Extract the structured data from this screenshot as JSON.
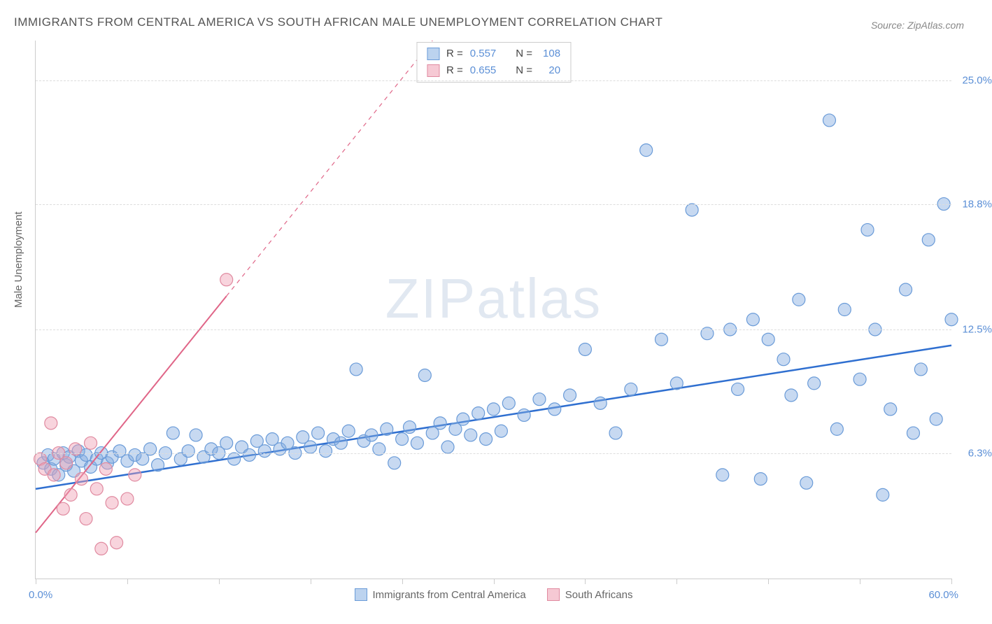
{
  "title": "IMMIGRANTS FROM CENTRAL AMERICA VS SOUTH AFRICAN MALE UNEMPLOYMENT CORRELATION CHART",
  "source": "Source: ZipAtlas.com",
  "ylabel": "Male Unemployment",
  "watermark_a": "ZIP",
  "watermark_b": "atlas",
  "chart": {
    "type": "scatter",
    "xlim": [
      0,
      60
    ],
    "ylim": [
      0,
      27
    ],
    "x_min_label": "0.0%",
    "x_max_label": "60.0%",
    "y_ticks": [
      6.3,
      12.5,
      18.8,
      25.0
    ],
    "y_tick_labels": [
      "6.3%",
      "12.5%",
      "18.8%",
      "25.0%"
    ],
    "x_tick_positions": [
      0,
      6,
      12,
      18,
      24,
      30,
      36,
      42,
      48,
      54,
      60
    ],
    "background_color": "#ffffff",
    "grid_color": "#dddddd",
    "axis_color": "#cccccc",
    "tick_label_color": "#5b8fd6",
    "marker_radius": 9,
    "marker_stroke_width": 1.2,
    "series": [
      {
        "name": "Immigrants from Central America",
        "color_fill": "rgba(130,170,225,0.45)",
        "color_stroke": "#6a9bd8",
        "swatch_fill": "#bcd3ef",
        "swatch_border": "#6a9bd8",
        "r": "0.557",
        "n": "108",
        "trend": {
          "x1": 0,
          "y1": 4.5,
          "x2": 60,
          "y2": 11.7,
          "stroke": "#2f6fd0",
          "width": 2.5,
          "dash": "none"
        },
        "points": [
          [
            0.5,
            5.8
          ],
          [
            0.8,
            6.2
          ],
          [
            1.0,
            5.5
          ],
          [
            1.2,
            6.0
          ],
          [
            1.5,
            5.2
          ],
          [
            1.8,
            6.3
          ],
          [
            2.0,
            5.7
          ],
          [
            2.2,
            6.1
          ],
          [
            2.5,
            5.4
          ],
          [
            2.8,
            6.4
          ],
          [
            3.0,
            5.9
          ],
          [
            3.3,
            6.2
          ],
          [
            3.6,
            5.6
          ],
          [
            4.0,
            6.0
          ],
          [
            4.3,
            6.3
          ],
          [
            4.7,
            5.8
          ],
          [
            5.0,
            6.1
          ],
          [
            5.5,
            6.4
          ],
          [
            6.0,
            5.9
          ],
          [
            6.5,
            6.2
          ],
          [
            7.0,
            6.0
          ],
          [
            7.5,
            6.5
          ],
          [
            8.0,
            5.7
          ],
          [
            8.5,
            6.3
          ],
          [
            9.0,
            7.3
          ],
          [
            9.5,
            6.0
          ],
          [
            10.0,
            6.4
          ],
          [
            10.5,
            7.2
          ],
          [
            11.0,
            6.1
          ],
          [
            11.5,
            6.5
          ],
          [
            12.0,
            6.3
          ],
          [
            12.5,
            6.8
          ],
          [
            13.0,
            6.0
          ],
          [
            13.5,
            6.6
          ],
          [
            14.0,
            6.2
          ],
          [
            14.5,
            6.9
          ],
          [
            15.0,
            6.4
          ],
          [
            15.5,
            7.0
          ],
          [
            16.0,
            6.5
          ],
          [
            16.5,
            6.8
          ],
          [
            17.0,
            6.3
          ],
          [
            17.5,
            7.1
          ],
          [
            18.0,
            6.6
          ],
          [
            18.5,
            7.3
          ],
          [
            19.0,
            6.4
          ],
          [
            19.5,
            7.0
          ],
          [
            20.0,
            6.8
          ],
          [
            20.5,
            7.4
          ],
          [
            21.0,
            10.5
          ],
          [
            21.5,
            6.9
          ],
          [
            22.0,
            7.2
          ],
          [
            22.5,
            6.5
          ],
          [
            23.0,
            7.5
          ],
          [
            23.5,
            5.8
          ],
          [
            24.0,
            7.0
          ],
          [
            24.5,
            7.6
          ],
          [
            25.0,
            6.8
          ],
          [
            25.5,
            10.2
          ],
          [
            26.0,
            7.3
          ],
          [
            26.5,
            7.8
          ],
          [
            27.0,
            6.6
          ],
          [
            27.5,
            7.5
          ],
          [
            28.0,
            8.0
          ],
          [
            28.5,
            7.2
          ],
          [
            29.0,
            8.3
          ],
          [
            29.5,
            7.0
          ],
          [
            30.0,
            8.5
          ],
          [
            30.5,
            7.4
          ],
          [
            31.0,
            8.8
          ],
          [
            32.0,
            8.2
          ],
          [
            33.0,
            9.0
          ],
          [
            34.0,
            8.5
          ],
          [
            35.0,
            9.2
          ],
          [
            36.0,
            11.5
          ],
          [
            37.0,
            8.8
          ],
          [
            38.0,
            7.3
          ],
          [
            39.0,
            9.5
          ],
          [
            40.0,
            21.5
          ],
          [
            41.0,
            12.0
          ],
          [
            42.0,
            9.8
          ],
          [
            43.0,
            18.5
          ],
          [
            44.0,
            12.3
          ],
          [
            45.0,
            5.2
          ],
          [
            45.5,
            12.5
          ],
          [
            46.0,
            9.5
          ],
          [
            47.0,
            13.0
          ],
          [
            47.5,
            5.0
          ],
          [
            48.0,
            12.0
          ],
          [
            49.0,
            11.0
          ],
          [
            49.5,
            9.2
          ],
          [
            50.0,
            14.0
          ],
          [
            50.5,
            4.8
          ],
          [
            51.0,
            9.8
          ],
          [
            52.0,
            23.0
          ],
          [
            52.5,
            7.5
          ],
          [
            53.0,
            13.5
          ],
          [
            54.0,
            10.0
          ],
          [
            54.5,
            17.5
          ],
          [
            55.0,
            12.5
          ],
          [
            55.5,
            4.2
          ],
          [
            56.0,
            8.5
          ],
          [
            57.0,
            14.5
          ],
          [
            57.5,
            7.3
          ],
          [
            58.0,
            10.5
          ],
          [
            58.5,
            17.0
          ],
          [
            59.0,
            8.0
          ],
          [
            59.5,
            18.8
          ],
          [
            60.0,
            13.0
          ]
        ]
      },
      {
        "name": "South Africans",
        "color_fill": "rgba(240,160,180,0.45)",
        "color_stroke": "#e08aa0",
        "swatch_fill": "#f6c9d4",
        "swatch_border": "#e08aa0",
        "r": "0.655",
        "n": "20",
        "trend": {
          "x1": 0,
          "y1": 2.3,
          "x2": 26,
          "y2": 27.0,
          "stroke": "#e06688",
          "width": 2,
          "dash": "solid_then_dash",
          "solid_until_x": 12.5
        },
        "points": [
          [
            0.3,
            6.0
          ],
          [
            0.6,
            5.5
          ],
          [
            1.0,
            7.8
          ],
          [
            1.2,
            5.2
          ],
          [
            1.5,
            6.3
          ],
          [
            1.8,
            3.5
          ],
          [
            2.0,
            5.8
          ],
          [
            2.3,
            4.2
          ],
          [
            2.6,
            6.5
          ],
          [
            3.0,
            5.0
          ],
          [
            3.3,
            3.0
          ],
          [
            3.6,
            6.8
          ],
          [
            4.0,
            4.5
          ],
          [
            4.3,
            1.5
          ],
          [
            4.6,
            5.5
          ],
          [
            5.0,
            3.8
          ],
          [
            5.3,
            1.8
          ],
          [
            6.0,
            4.0
          ],
          [
            6.5,
            5.2
          ],
          [
            12.5,
            15.0
          ]
        ]
      }
    ]
  },
  "top_legend": {
    "rows": [
      {
        "swatch_fill": "#bcd3ef",
        "swatch_border": "#6a9bd8",
        "r_label": "R =",
        "r": "0.557",
        "n_label": "N =",
        "n": "108"
      },
      {
        "swatch_fill": "#f6c9d4",
        "swatch_border": "#e08aa0",
        "r_label": "R =",
        "r": "0.655",
        "n_label": "N =",
        "n": "20"
      }
    ]
  },
  "bottom_legend": {
    "items": [
      {
        "swatch_fill": "#bcd3ef",
        "swatch_border": "#6a9bd8",
        "label": "Immigrants from Central America"
      },
      {
        "swatch_fill": "#f6c9d4",
        "swatch_border": "#e08aa0",
        "label": "South Africans"
      }
    ]
  }
}
